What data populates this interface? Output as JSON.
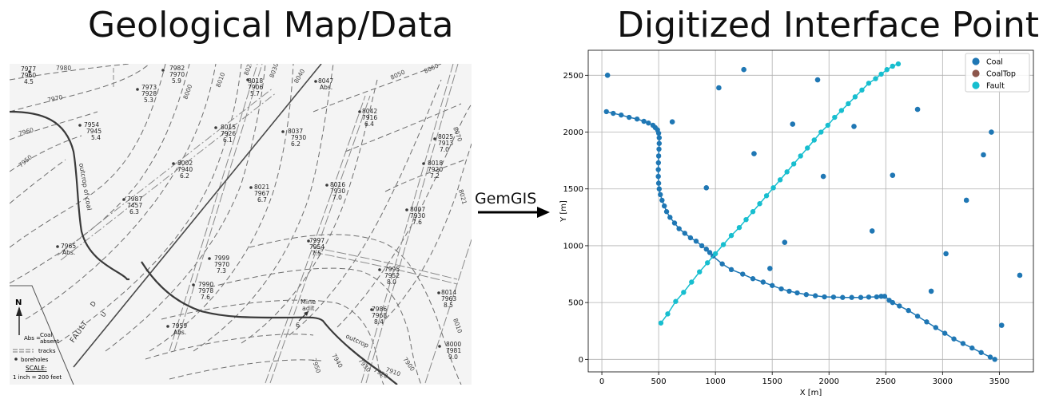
{
  "titles": {
    "left": "Geological Map/Data",
    "right": "Digitized Interface Points"
  },
  "arrow": {
    "label": "GemGIS"
  },
  "map": {
    "spot_labels": [
      {
        "lines": [
          "7977",
          "7960",
          "4.5"
        ]
      },
      {
        "lines": [
          "7982",
          "7970",
          "5.9"
        ]
      },
      {
        "lines": [
          "7973",
          "7928",
          "5.3"
        ]
      },
      {
        "lines": [
          "8018",
          "7906",
          "5.7"
        ]
      },
      {
        "lines": [
          "8047",
          "Abs."
        ]
      },
      {
        "lines": [
          "8042",
          "7916",
          "6.4"
        ]
      },
      {
        "lines": [
          "7954",
          "7945",
          "5.4"
        ]
      },
      {
        "lines": [
          "8015",
          "7926",
          "6.1"
        ]
      },
      {
        "lines": [
          "8037",
          "7930",
          "6.2"
        ]
      },
      {
        "lines": [
          "8025",
          "7913",
          "7.0"
        ]
      },
      {
        "lines": [
          "8002",
          "7940",
          "6.2"
        ]
      },
      {
        "lines": [
          "8018",
          "7920",
          "7.2"
        ]
      },
      {
        "lines": [
          "8021",
          "7967",
          "6.7"
        ]
      },
      {
        "lines": [
          "8016",
          "7930",
          "7.0"
        ]
      },
      {
        "lines": [
          "7987",
          "7457",
          "6.3"
        ]
      },
      {
        "lines": [
          "8007",
          "7930",
          "7.6"
        ]
      },
      {
        "lines": [
          "7965",
          "Abs."
        ]
      },
      {
        "lines": [
          "7997",
          "7954",
          "7.5"
        ]
      },
      {
        "lines": [
          "7999",
          "7970",
          "7.3"
        ]
      },
      {
        "lines": [
          "7995",
          "7952",
          "8.0"
        ]
      },
      {
        "lines": [
          "7990",
          "7978",
          "7.6"
        ]
      },
      {
        "lines": [
          "8014",
          "7963",
          "8.5"
        ]
      },
      {
        "lines": [
          "7986",
          "7968",
          "8.4"
        ]
      },
      {
        "lines": [
          "7959",
          "Abs."
        ]
      },
      {
        "lines": [
          "8000",
          "7981",
          "9.0"
        ]
      }
    ],
    "contour_labels": [
      "7980",
      "7970",
      "7960",
      "7950",
      "8000",
      "8010",
      "8020",
      "8030",
      "8040",
      "8050",
      "8060",
      "8070",
      "8021",
      "8010",
      "7950",
      "7940",
      "7930",
      "7920",
      "7910",
      "7900"
    ],
    "text": {
      "fault": "FAULT",
      "fault_u": "U",
      "fault_d": "D",
      "outcrop_coal": "outcrop of coal",
      "outcrop": "outcrop",
      "mine_adit": [
        "Mine",
        "adit"
      ],
      "mine_adit_num": "6"
    },
    "legend": {
      "north": "N",
      "abs_line1": "Coal",
      "abs_prefix": "Abs =",
      "abs_line2": "absent",
      "tracks": "tracks",
      "boreholes": "boreholes",
      "scale_title": "SCALE:",
      "scale_text": "1 inch = 200   feet"
    }
  },
  "chart_data": {
    "type": "scatter",
    "xlabel": "X [m]",
    "ylabel": "Y [m]",
    "xlim": [
      -120,
      3800
    ],
    "ylim": [
      -110,
      2720
    ],
    "xticks": [
      0,
      500,
      1000,
      1500,
      2000,
      2500,
      3000,
      3500
    ],
    "yticks": [
      0,
      500,
      1000,
      1500,
      2000,
      2500
    ],
    "grid": true,
    "legend_position": "top-right",
    "series": [
      {
        "name": "Coal",
        "color": "#1f77b4",
        "line": [
          [
            40,
            2180
          ],
          [
            100,
            2165
          ],
          [
            170,
            2150
          ],
          [
            240,
            2130
          ],
          [
            310,
            2115
          ],
          [
            370,
            2095
          ],
          [
            410,
            2080
          ],
          [
            450,
            2060
          ],
          [
            470,
            2040
          ],
          [
            490,
            2020
          ],
          [
            500,
            1990
          ],
          [
            505,
            1950
          ],
          [
            505,
            1900
          ],
          [
            503,
            1850
          ],
          [
            500,
            1790
          ],
          [
            498,
            1730
          ],
          [
            497,
            1670
          ],
          [
            497,
            1610
          ],
          [
            500,
            1550
          ],
          [
            505,
            1500
          ],
          [
            515,
            1450
          ],
          [
            530,
            1400
          ],
          [
            550,
            1350
          ],
          [
            570,
            1300
          ],
          [
            600,
            1250
          ],
          [
            640,
            1200
          ],
          [
            680,
            1150
          ],
          [
            730,
            1110
          ],
          [
            780,
            1070
          ],
          [
            830,
            1040
          ],
          [
            880,
            1000
          ],
          [
            920,
            970
          ],
          [
            950,
            940
          ],
          [
            980,
            910
          ],
          [
            1000,
            890
          ],
          [
            1060,
            840
          ],
          [
            1140,
            790
          ],
          [
            1240,
            750
          ],
          [
            1330,
            710
          ],
          [
            1420,
            680
          ],
          [
            1500,
            650
          ],
          [
            1580,
            620
          ],
          [
            1650,
            600
          ],
          [
            1720,
            585
          ],
          [
            1800,
            570
          ],
          [
            1880,
            560
          ],
          [
            1960,
            550
          ],
          [
            2040,
            548
          ],
          [
            2120,
            545
          ],
          [
            2200,
            545
          ],
          [
            2280,
            545
          ],
          [
            2350,
            548
          ],
          [
            2420,
            550
          ],
          [
            2460,
            555
          ],
          [
            2490,
            555
          ],
          [
            2510,
            540
          ],
          [
            2530,
            520
          ],
          [
            2560,
            500
          ],
          [
            2620,
            470
          ],
          [
            2700,
            430
          ],
          [
            2780,
            380
          ],
          [
            2860,
            330
          ],
          [
            2940,
            280
          ],
          [
            3020,
            230
          ],
          [
            3100,
            180
          ],
          [
            3180,
            140
          ],
          [
            3260,
            100
          ],
          [
            3340,
            60
          ],
          [
            3420,
            20
          ],
          [
            3460,
            0
          ]
        ],
        "points": [
          [
            40,
            2180
          ],
          [
            100,
            2165
          ],
          [
            170,
            2150
          ],
          [
            240,
            2130
          ],
          [
            310,
            2115
          ],
          [
            370,
            2095
          ],
          [
            410,
            2080
          ],
          [
            450,
            2060
          ],
          [
            470,
            2040
          ],
          [
            490,
            2020
          ],
          [
            500,
            1990
          ],
          [
            505,
            1950
          ],
          [
            505,
            1900
          ],
          [
            503,
            1850
          ],
          [
            500,
            1790
          ],
          [
            498,
            1730
          ],
          [
            497,
            1670
          ],
          [
            497,
            1610
          ],
          [
            500,
            1550
          ],
          [
            505,
            1500
          ],
          [
            515,
            1450
          ],
          [
            530,
            1400
          ],
          [
            550,
            1350
          ],
          [
            570,
            1300
          ],
          [
            600,
            1250
          ],
          [
            640,
            1200
          ],
          [
            680,
            1150
          ],
          [
            730,
            1110
          ],
          [
            780,
            1070
          ],
          [
            830,
            1040
          ],
          [
            880,
            1000
          ],
          [
            920,
            970
          ],
          [
            950,
            940
          ],
          [
            980,
            910
          ],
          [
            1060,
            840
          ],
          [
            1140,
            790
          ],
          [
            1240,
            750
          ],
          [
            1330,
            710
          ],
          [
            1420,
            680
          ],
          [
            1500,
            650
          ],
          [
            1580,
            620
          ],
          [
            1650,
            600
          ],
          [
            1720,
            585
          ],
          [
            1800,
            570
          ],
          [
            1880,
            560
          ],
          [
            1960,
            550
          ],
          [
            2040,
            548
          ],
          [
            2120,
            545
          ],
          [
            2200,
            545
          ],
          [
            2280,
            545
          ],
          [
            2350,
            548
          ],
          [
            2420,
            550
          ],
          [
            2460,
            555
          ],
          [
            2490,
            555
          ],
          [
            2530,
            520
          ],
          [
            2560,
            500
          ],
          [
            2620,
            470
          ],
          [
            2700,
            430
          ],
          [
            2780,
            380
          ],
          [
            2860,
            330
          ],
          [
            2940,
            280
          ],
          [
            3020,
            230
          ],
          [
            3100,
            180
          ],
          [
            3180,
            140
          ],
          [
            3260,
            100
          ],
          [
            3340,
            60
          ],
          [
            3420,
            20
          ],
          [
            3460,
            0
          ]
        ],
        "scatter": [
          [
            50,
            2500
          ],
          [
            1250,
            2550
          ],
          [
            1030,
            2390
          ],
          [
            1900,
            2460
          ],
          [
            620,
            2090
          ],
          [
            1680,
            2070
          ],
          [
            2220,
            2050
          ],
          [
            2780,
            2200
          ],
          [
            3430,
            2000
          ],
          [
            1340,
            1810
          ],
          [
            3360,
            1800
          ],
          [
            1950,
            1610
          ],
          [
            2560,
            1620
          ],
          [
            920,
            1510
          ],
          [
            3210,
            1400
          ],
          [
            2380,
            1130
          ],
          [
            1610,
            1030
          ],
          [
            3030,
            930
          ],
          [
            1480,
            800
          ],
          [
            3680,
            740
          ],
          [
            2900,
            600
          ],
          [
            3520,
            300
          ]
        ]
      },
      {
        "name": "CoalTop",
        "color": "#8c564b",
        "line": [],
        "points": [],
        "scatter": []
      },
      {
        "name": "Fault",
        "color": "#17becf",
        "line": [
          [
            520,
            320
          ],
          [
            580,
            400
          ],
          [
            650,
            510
          ],
          [
            720,
            590
          ],
          [
            790,
            680
          ],
          [
            860,
            770
          ],
          [
            930,
            850
          ],
          [
            1000,
            930
          ],
          [
            1070,
            1010
          ],
          [
            1140,
            1090
          ],
          [
            1210,
            1160
          ],
          [
            1270,
            1230
          ],
          [
            1330,
            1300
          ],
          [
            1390,
            1370
          ],
          [
            1450,
            1440
          ],
          [
            1510,
            1510
          ],
          [
            1570,
            1580
          ],
          [
            1630,
            1650
          ],
          [
            1690,
            1720
          ],
          [
            1750,
            1790
          ],
          [
            1810,
            1860
          ],
          [
            1870,
            1930
          ],
          [
            1930,
            2000
          ],
          [
            1990,
            2060
          ],
          [
            2050,
            2130
          ],
          [
            2110,
            2190
          ],
          [
            2170,
            2250
          ],
          [
            2230,
            2310
          ],
          [
            2290,
            2370
          ],
          [
            2350,
            2430
          ],
          [
            2410,
            2470
          ],
          [
            2460,
            2510
          ],
          [
            2510,
            2550
          ],
          [
            2560,
            2580
          ],
          [
            2610,
            2600
          ]
        ],
        "points": [
          [
            520,
            320
          ],
          [
            580,
            400
          ],
          [
            650,
            510
          ],
          [
            720,
            590
          ],
          [
            790,
            680
          ],
          [
            860,
            770
          ],
          [
            930,
            850
          ],
          [
            1000,
            930
          ],
          [
            1070,
            1010
          ],
          [
            1140,
            1090
          ],
          [
            1210,
            1160
          ],
          [
            1270,
            1230
          ],
          [
            1330,
            1300
          ],
          [
            1390,
            1370
          ],
          [
            1450,
            1440
          ],
          [
            1510,
            1510
          ],
          [
            1570,
            1580
          ],
          [
            1630,
            1650
          ],
          [
            1690,
            1720
          ],
          [
            1750,
            1790
          ],
          [
            1810,
            1860
          ],
          [
            1870,
            1930
          ],
          [
            1930,
            2000
          ],
          [
            1990,
            2060
          ],
          [
            2050,
            2130
          ],
          [
            2110,
            2190
          ],
          [
            2170,
            2250
          ],
          [
            2230,
            2310
          ],
          [
            2290,
            2370
          ],
          [
            2350,
            2430
          ],
          [
            2410,
            2470
          ],
          [
            2460,
            2510
          ],
          [
            2510,
            2550
          ],
          [
            2560,
            2580
          ],
          [
            2610,
            2600
          ]
        ],
        "scatter": []
      }
    ]
  }
}
